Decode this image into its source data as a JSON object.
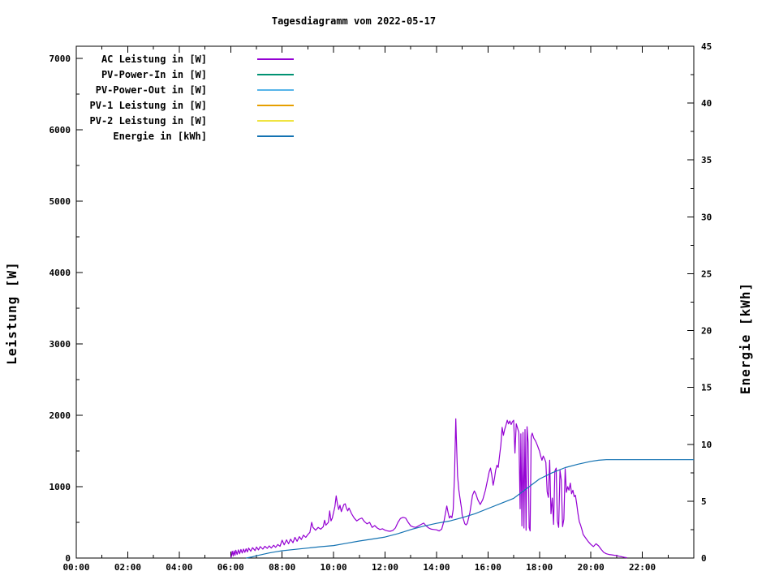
{
  "chart_data": {
    "type": "line",
    "title": "Tagesdiagramm vom 2022-05-17",
    "ylabel_left": "Leistung [W]",
    "ylabel_right": "Energie [kWh]",
    "x_unit": "hour of day",
    "xlim_hours": [
      0,
      24
    ],
    "ylim_left": [
      0,
      7170
    ],
    "ylim_right": [
      0,
      45
    ],
    "grid": false,
    "legend_position": "top-left",
    "x_ticks": [
      {
        "label": "00:00",
        "hour": 0
      },
      {
        "label": "02:00",
        "hour": 2
      },
      {
        "label": "04:00",
        "hour": 4
      },
      {
        "label": "06:00",
        "hour": 6
      },
      {
        "label": "08:00",
        "hour": 8
      },
      {
        "label": "10:00",
        "hour": 10
      },
      {
        "label": "12:00",
        "hour": 12
      },
      {
        "label": "14:00",
        "hour": 14
      },
      {
        "label": "16:00",
        "hour": 16
      },
      {
        "label": "18:00",
        "hour": 18
      },
      {
        "label": "20:00",
        "hour": 20
      },
      {
        "label": "22:00",
        "hour": 22
      }
    ],
    "x_minor_step_hours": 1,
    "y_ticks_left": [
      0,
      1000,
      2000,
      3000,
      4000,
      5000,
      6000,
      7000
    ],
    "y_minor_step_left": 500,
    "y_ticks_right": [
      0,
      5,
      10,
      15,
      20,
      25,
      30,
      35,
      40,
      45
    ],
    "y_minor_step_right": 2.5,
    "legend": [
      {
        "label": "AC Leistung in [W]",
        "color": "#9400d3"
      },
      {
        "label": "PV-Power-In in [W]",
        "color": "#009272"
      },
      {
        "label": "PV-Power-Out in [W]",
        "color": "#56b4e9"
      },
      {
        "label": "PV-1 Leistung in [W]",
        "color": "#e69f00"
      },
      {
        "label": "PV-2 Leistung in [W]",
        "color": "#f0e442"
      },
      {
        "label": "Energie in [kWh]",
        "color": "#1372b2"
      }
    ],
    "series": [
      {
        "name": "AC Leistung in [W]",
        "axis": "left",
        "color": "#9400d3",
        "points": [
          [
            6.0,
            0
          ],
          [
            6.03,
            25
          ],
          [
            6.06,
            95
          ],
          [
            6.1,
            30
          ],
          [
            6.13,
            100
          ],
          [
            6.17,
            40
          ],
          [
            6.2,
            110
          ],
          [
            6.25,
            50
          ],
          [
            6.3,
            115
          ],
          [
            6.35,
            60
          ],
          [
            6.4,
            120
          ],
          [
            6.45,
            70
          ],
          [
            6.5,
            125
          ],
          [
            6.55,
            80
          ],
          [
            6.6,
            130
          ],
          [
            6.65,
            85
          ],
          [
            6.7,
            140
          ],
          [
            6.78,
            95
          ],
          [
            6.85,
            145
          ],
          [
            6.95,
            105
          ],
          [
            7.0,
            155
          ],
          [
            7.08,
            115
          ],
          [
            7.15,
            160
          ],
          [
            7.25,
            125
          ],
          [
            7.33,
            165
          ],
          [
            7.42,
            135
          ],
          [
            7.5,
            170
          ],
          [
            7.58,
            140
          ],
          [
            7.67,
            180
          ],
          [
            7.75,
            150
          ],
          [
            7.83,
            190
          ],
          [
            7.92,
            165
          ],
          [
            8.0,
            250
          ],
          [
            8.08,
            185
          ],
          [
            8.17,
            255
          ],
          [
            8.25,
            200
          ],
          [
            8.33,
            265
          ],
          [
            8.42,
            215
          ],
          [
            8.5,
            290
          ],
          [
            8.58,
            235
          ],
          [
            8.67,
            300
          ],
          [
            8.75,
            260
          ],
          [
            8.83,
            320
          ],
          [
            8.92,
            290
          ],
          [
            9.0,
            330
          ],
          [
            9.08,
            360
          ],
          [
            9.15,
            500
          ],
          [
            9.2,
            430
          ],
          [
            9.3,
            390
          ],
          [
            9.4,
            430
          ],
          [
            9.5,
            405
          ],
          [
            9.6,
            440
          ],
          [
            9.65,
            530
          ],
          [
            9.7,
            460
          ],
          [
            9.8,
            500
          ],
          [
            9.85,
            660
          ],
          [
            9.9,
            520
          ],
          [
            9.95,
            560
          ],
          [
            10.0,
            640
          ],
          [
            10.05,
            720
          ],
          [
            10.1,
            870
          ],
          [
            10.15,
            760
          ],
          [
            10.2,
            680
          ],
          [
            10.25,
            740
          ],
          [
            10.3,
            650
          ],
          [
            10.35,
            700
          ],
          [
            10.4,
            750
          ],
          [
            10.45,
            760
          ],
          [
            10.5,
            700
          ],
          [
            10.55,
            660
          ],
          [
            10.6,
            700
          ],
          [
            10.7,
            620
          ],
          [
            10.8,
            560
          ],
          [
            10.9,
            520
          ],
          [
            11.0,
            545
          ],
          [
            11.1,
            560
          ],
          [
            11.2,
            510
          ],
          [
            11.3,
            480
          ],
          [
            11.4,
            500
          ],
          [
            11.5,
            430
          ],
          [
            11.6,
            455
          ],
          [
            11.7,
            420
          ],
          [
            11.8,
            400
          ],
          [
            11.9,
            410
          ],
          [
            12.0,
            390
          ],
          [
            12.1,
            380
          ],
          [
            12.2,
            375
          ],
          [
            12.3,
            385
          ],
          [
            12.4,
            420
          ],
          [
            12.5,
            500
          ],
          [
            12.6,
            555
          ],
          [
            12.7,
            570
          ],
          [
            12.8,
            560
          ],
          [
            12.9,
            500
          ],
          [
            13.0,
            450
          ],
          [
            13.1,
            435
          ],
          [
            13.2,
            430
          ],
          [
            13.3,
            450
          ],
          [
            13.4,
            470
          ],
          [
            13.5,
            490
          ],
          [
            13.6,
            450
          ],
          [
            13.7,
            420
          ],
          [
            13.8,
            405
          ],
          [
            13.9,
            400
          ],
          [
            14.0,
            395
          ],
          [
            14.1,
            380
          ],
          [
            14.2,
            405
          ],
          [
            14.3,
            530
          ],
          [
            14.4,
            730
          ],
          [
            14.45,
            640
          ],
          [
            14.5,
            560
          ],
          [
            14.55,
            590
          ],
          [
            14.6,
            565
          ],
          [
            14.65,
            680
          ],
          [
            14.7,
            1150
          ],
          [
            14.75,
            1950
          ],
          [
            14.78,
            1600
          ],
          [
            14.82,
            1150
          ],
          [
            14.87,
            950
          ],
          [
            14.92,
            820
          ],
          [
            14.97,
            700
          ],
          [
            15.0,
            600
          ],
          [
            15.05,
            540
          ],
          [
            15.1,
            480
          ],
          [
            15.15,
            465
          ],
          [
            15.2,
            490
          ],
          [
            15.3,
            640
          ],
          [
            15.4,
            880
          ],
          [
            15.47,
            940
          ],
          [
            15.53,
            900
          ],
          [
            15.6,
            820
          ],
          [
            15.7,
            750
          ],
          [
            15.8,
            820
          ],
          [
            15.9,
            950
          ],
          [
            16.0,
            1120
          ],
          [
            16.05,
            1210
          ],
          [
            16.1,
            1260
          ],
          [
            16.15,
            1160
          ],
          [
            16.2,
            1020
          ],
          [
            16.25,
            1110
          ],
          [
            16.3,
            1230
          ],
          [
            16.35,
            1300
          ],
          [
            16.4,
            1270
          ],
          [
            16.45,
            1430
          ],
          [
            16.5,
            1580
          ],
          [
            16.55,
            1830
          ],
          [
            16.6,
            1720
          ],
          [
            16.65,
            1800
          ],
          [
            16.7,
            1860
          ],
          [
            16.75,
            1930
          ],
          [
            16.8,
            1880
          ],
          [
            16.85,
            1920
          ],
          [
            16.9,
            1870
          ],
          [
            16.95,
            1910
          ],
          [
            17.0,
            1930
          ],
          [
            17.05,
            1470
          ],
          [
            17.1,
            1880
          ],
          [
            17.15,
            1820
          ],
          [
            17.2,
            1760
          ],
          [
            17.25,
            690
          ],
          [
            17.28,
            1740
          ],
          [
            17.32,
            450
          ],
          [
            17.36,
            1760
          ],
          [
            17.4,
            420
          ],
          [
            17.44,
            1800
          ],
          [
            17.48,
            390
          ],
          [
            17.52,
            1840
          ],
          [
            17.56,
            1620
          ],
          [
            17.6,
            430
          ],
          [
            17.64,
            380
          ],
          [
            17.68,
            1700
          ],
          [
            17.72,
            1750
          ],
          [
            17.78,
            1680
          ],
          [
            17.85,
            1640
          ],
          [
            17.92,
            1580
          ],
          [
            18.0,
            1500
          ],
          [
            18.05,
            1430
          ],
          [
            18.1,
            1370
          ],
          [
            18.15,
            1430
          ],
          [
            18.2,
            1390
          ],
          [
            18.25,
            1340
          ],
          [
            18.3,
            930
          ],
          [
            18.35,
            850
          ],
          [
            18.4,
            1370
          ],
          [
            18.45,
            620
          ],
          [
            18.5,
            840
          ],
          [
            18.55,
            470
          ],
          [
            18.6,
            1220
          ],
          [
            18.65,
            1260
          ],
          [
            18.7,
            520
          ],
          [
            18.75,
            430
          ],
          [
            18.8,
            1230
          ],
          [
            18.85,
            1090
          ],
          [
            18.9,
            440
          ],
          [
            18.95,
            545
          ],
          [
            19.0,
            1250
          ],
          [
            19.05,
            920
          ],
          [
            19.1,
            1000
          ],
          [
            19.15,
            950
          ],
          [
            19.2,
            1050
          ],
          [
            19.25,
            900
          ],
          [
            19.3,
            950
          ],
          [
            19.35,
            860
          ],
          [
            19.4,
            880
          ],
          [
            19.45,
            760
          ],
          [
            19.5,
            620
          ],
          [
            19.55,
            510
          ],
          [
            19.6,
            460
          ],
          [
            19.65,
            400
          ],
          [
            19.7,
            330
          ],
          [
            19.8,
            280
          ],
          [
            19.9,
            230
          ],
          [
            20.0,
            190
          ],
          [
            20.1,
            160
          ],
          [
            20.2,
            200
          ],
          [
            20.3,
            170
          ],
          [
            20.4,
            120
          ],
          [
            20.5,
            80
          ],
          [
            20.6,
            60
          ],
          [
            20.7,
            50
          ],
          [
            20.8,
            45
          ],
          [
            20.9,
            40
          ],
          [
            21.0,
            35
          ],
          [
            21.1,
            25
          ],
          [
            21.2,
            18
          ],
          [
            21.3,
            10
          ],
          [
            21.4,
            5
          ]
        ]
      },
      {
        "name": "Energie in [kWh]",
        "axis": "right",
        "color": "#1372b2",
        "points": [
          [
            6.6,
            0
          ],
          [
            6.8,
            0.08
          ],
          [
            7.0,
            0.2
          ],
          [
            7.25,
            0.33
          ],
          [
            7.5,
            0.45
          ],
          [
            7.75,
            0.55
          ],
          [
            8.0,
            0.64
          ],
          [
            8.5,
            0.76
          ],
          [
            9.0,
            0.88
          ],
          [
            9.5,
            1.0
          ],
          [
            10.0,
            1.1
          ],
          [
            10.5,
            1.3
          ],
          [
            11.0,
            1.5
          ],
          [
            11.5,
            1.67
          ],
          [
            12.0,
            1.85
          ],
          [
            12.5,
            2.15
          ],
          [
            13.0,
            2.5
          ],
          [
            13.5,
            2.8
          ],
          [
            14.0,
            3.05
          ],
          [
            14.5,
            3.25
          ],
          [
            15.0,
            3.55
          ],
          [
            15.5,
            3.9
          ],
          [
            16.0,
            4.35
          ],
          [
            16.5,
            4.8
          ],
          [
            17.0,
            5.25
          ],
          [
            17.5,
            6.1
          ],
          [
            18.0,
            6.95
          ],
          [
            18.5,
            7.5
          ],
          [
            19.0,
            7.95
          ],
          [
            19.5,
            8.25
          ],
          [
            20.0,
            8.5
          ],
          [
            20.3,
            8.6
          ],
          [
            20.6,
            8.65
          ],
          [
            21.0,
            8.65
          ],
          [
            22.0,
            8.65
          ],
          [
            23.0,
            8.65
          ],
          [
            24.0,
            8.65
          ]
        ]
      }
    ]
  }
}
